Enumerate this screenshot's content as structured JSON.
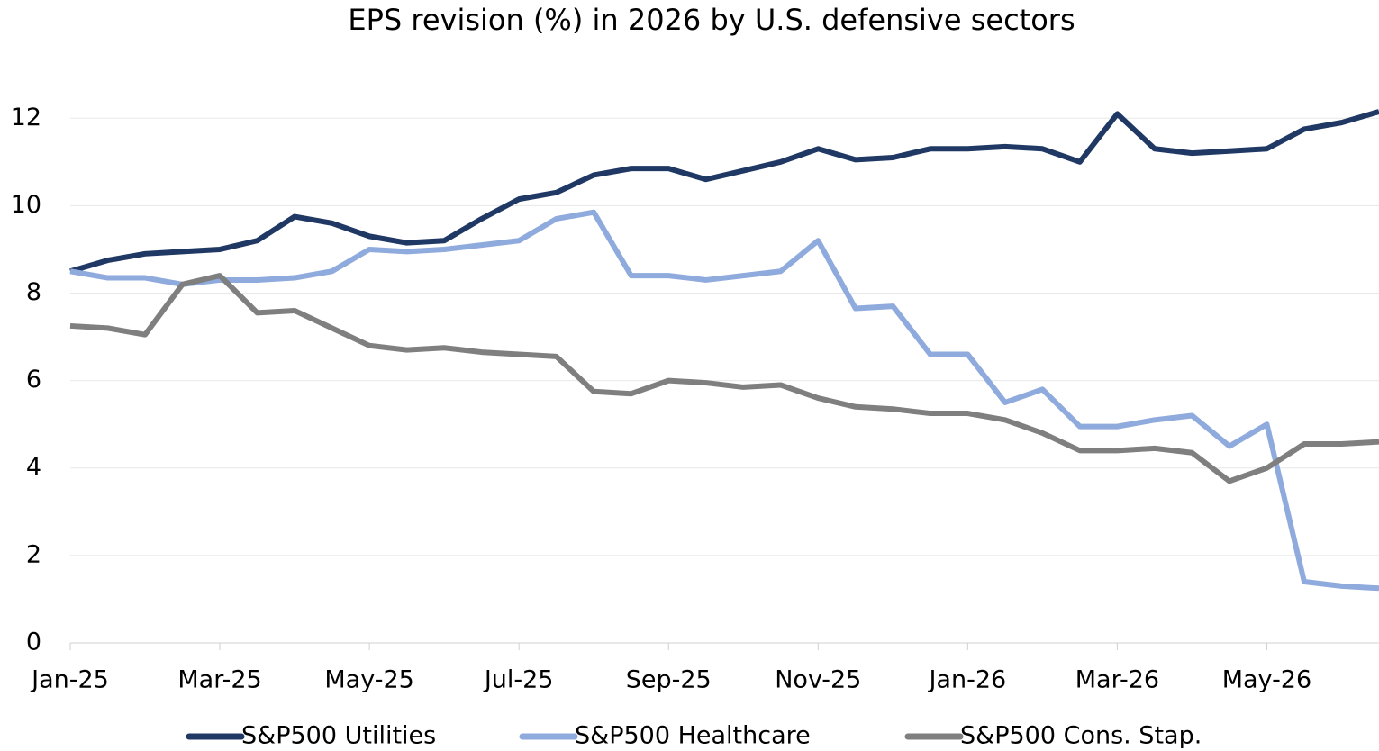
{
  "chart_data": {
    "type": "line",
    "title": "EPS revision (%) in 2026 by U.S. defensive sectors",
    "x": [
      0,
      0.5,
      1,
      1.5,
      2,
      2.5,
      3,
      3.5,
      4,
      4.5,
      5,
      5.5,
      6,
      6.5,
      7,
      7.5,
      8,
      8.5,
      9,
      9.5,
      10,
      10.5,
      11,
      11.5,
      12,
      12.5,
      13,
      13.5,
      14,
      14.5,
      15,
      15.5,
      16,
      16.5,
      17,
      17.5
    ],
    "series": [
      {
        "name": "S&P500 Utilities",
        "color": "#1f3864",
        "values": [
          8.5,
          8.75,
          8.9,
          8.95,
          9.0,
          9.2,
          9.75,
          9.6,
          9.3,
          9.15,
          9.2,
          9.7,
          10.15,
          10.3,
          10.7,
          10.85,
          10.85,
          10.6,
          10.8,
          11.0,
          11.3,
          11.05,
          11.1,
          11.3,
          11.3,
          11.35,
          11.3,
          11.0,
          12.1,
          11.3,
          11.2,
          11.25,
          11.3,
          11.75,
          11.9,
          12.15
        ]
      },
      {
        "name": "S&P500 Healthcare",
        "color": "#8faadc",
        "values": [
          8.5,
          8.35,
          8.35,
          8.2,
          8.3,
          8.3,
          8.35,
          8.5,
          9.0,
          8.95,
          9.0,
          9.1,
          9.2,
          9.7,
          9.85,
          8.4,
          8.4,
          8.3,
          8.4,
          8.5,
          9.2,
          7.65,
          7.7,
          6.6,
          6.6,
          5.5,
          5.8,
          4.95,
          4.95,
          5.1,
          5.2,
          4.5,
          5.0,
          1.4,
          1.3,
          1.25
        ]
      },
      {
        "name": "S&P500 Cons. Stap.",
        "color": "#7f7f7f",
        "values": [
          7.25,
          7.2,
          7.05,
          8.2,
          8.4,
          7.55,
          7.6,
          7.2,
          6.8,
          6.7,
          6.75,
          6.65,
          6.6,
          6.55,
          5.75,
          5.7,
          6.0,
          5.95,
          5.85,
          5.9,
          5.6,
          5.4,
          5.35,
          5.25,
          5.25,
          5.1,
          4.8,
          4.4,
          4.4,
          4.45,
          4.35,
          3.7,
          4.0,
          4.55,
          4.55,
          4.6
        ]
      }
    ],
    "xlim": [
      0,
      17.5
    ],
    "xticks": [
      {
        "value": 0,
        "label": "Jan-25"
      },
      {
        "value": 2,
        "label": "Mar-25"
      },
      {
        "value": 4,
        "label": "May-25"
      },
      {
        "value": 6,
        "label": "Jul-25"
      },
      {
        "value": 8,
        "label": "Sep-25"
      },
      {
        "value": 10,
        "label": "Nov-25"
      },
      {
        "value": 12,
        "label": "Jan-26"
      },
      {
        "value": 14,
        "label": "Mar-26"
      },
      {
        "value": 16,
        "label": "May-26"
      }
    ],
    "ylim": [
      0,
      12.5
    ],
    "yticks": [
      0,
      2,
      4,
      6,
      8,
      10,
      12
    ],
    "grid": true,
    "legend": "bottom"
  }
}
